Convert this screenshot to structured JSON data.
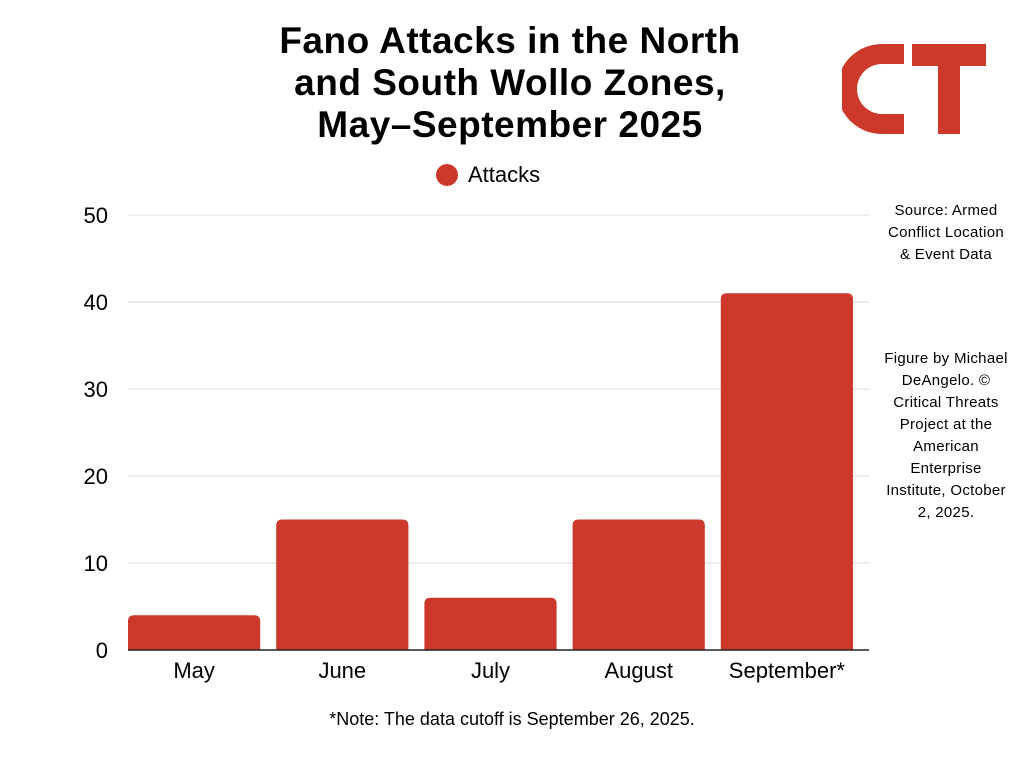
{
  "title_lines": [
    "Fano Attacks in the North",
    "and South Wollo Zones,",
    "May–September 2025"
  ],
  "logo": {
    "text": "CT",
    "color": "#cc3829"
  },
  "colors": {
    "bar": "#cc3829",
    "grid": "#d9d9d9",
    "axis": "#222222"
  },
  "notes": {
    "source": "Source: Armed Conflict Location & Event Data",
    "credit": "Figure by Michael DeAngelo. © Critical Threats Project at the American Enterprise Institute, October 2, 2025.",
    "footnote": "*Note: The data cutoff is September 26, 2025."
  },
  "chart_data": {
    "type": "bar",
    "title": "Fano Attacks in the North and South Wollo Zones, May–September 2025",
    "categories": [
      "May",
      "June",
      "July",
      "August",
      "September*"
    ],
    "series": [
      {
        "name": "Attacks",
        "values": [
          4,
          15,
          6,
          15,
          41
        ]
      }
    ],
    "ylim": [
      0,
      50
    ],
    "yticks": [
      0,
      10,
      20,
      30,
      40,
      50
    ],
    "xlabel": "",
    "ylabel": "",
    "grid": true,
    "legend": "top-center"
  }
}
